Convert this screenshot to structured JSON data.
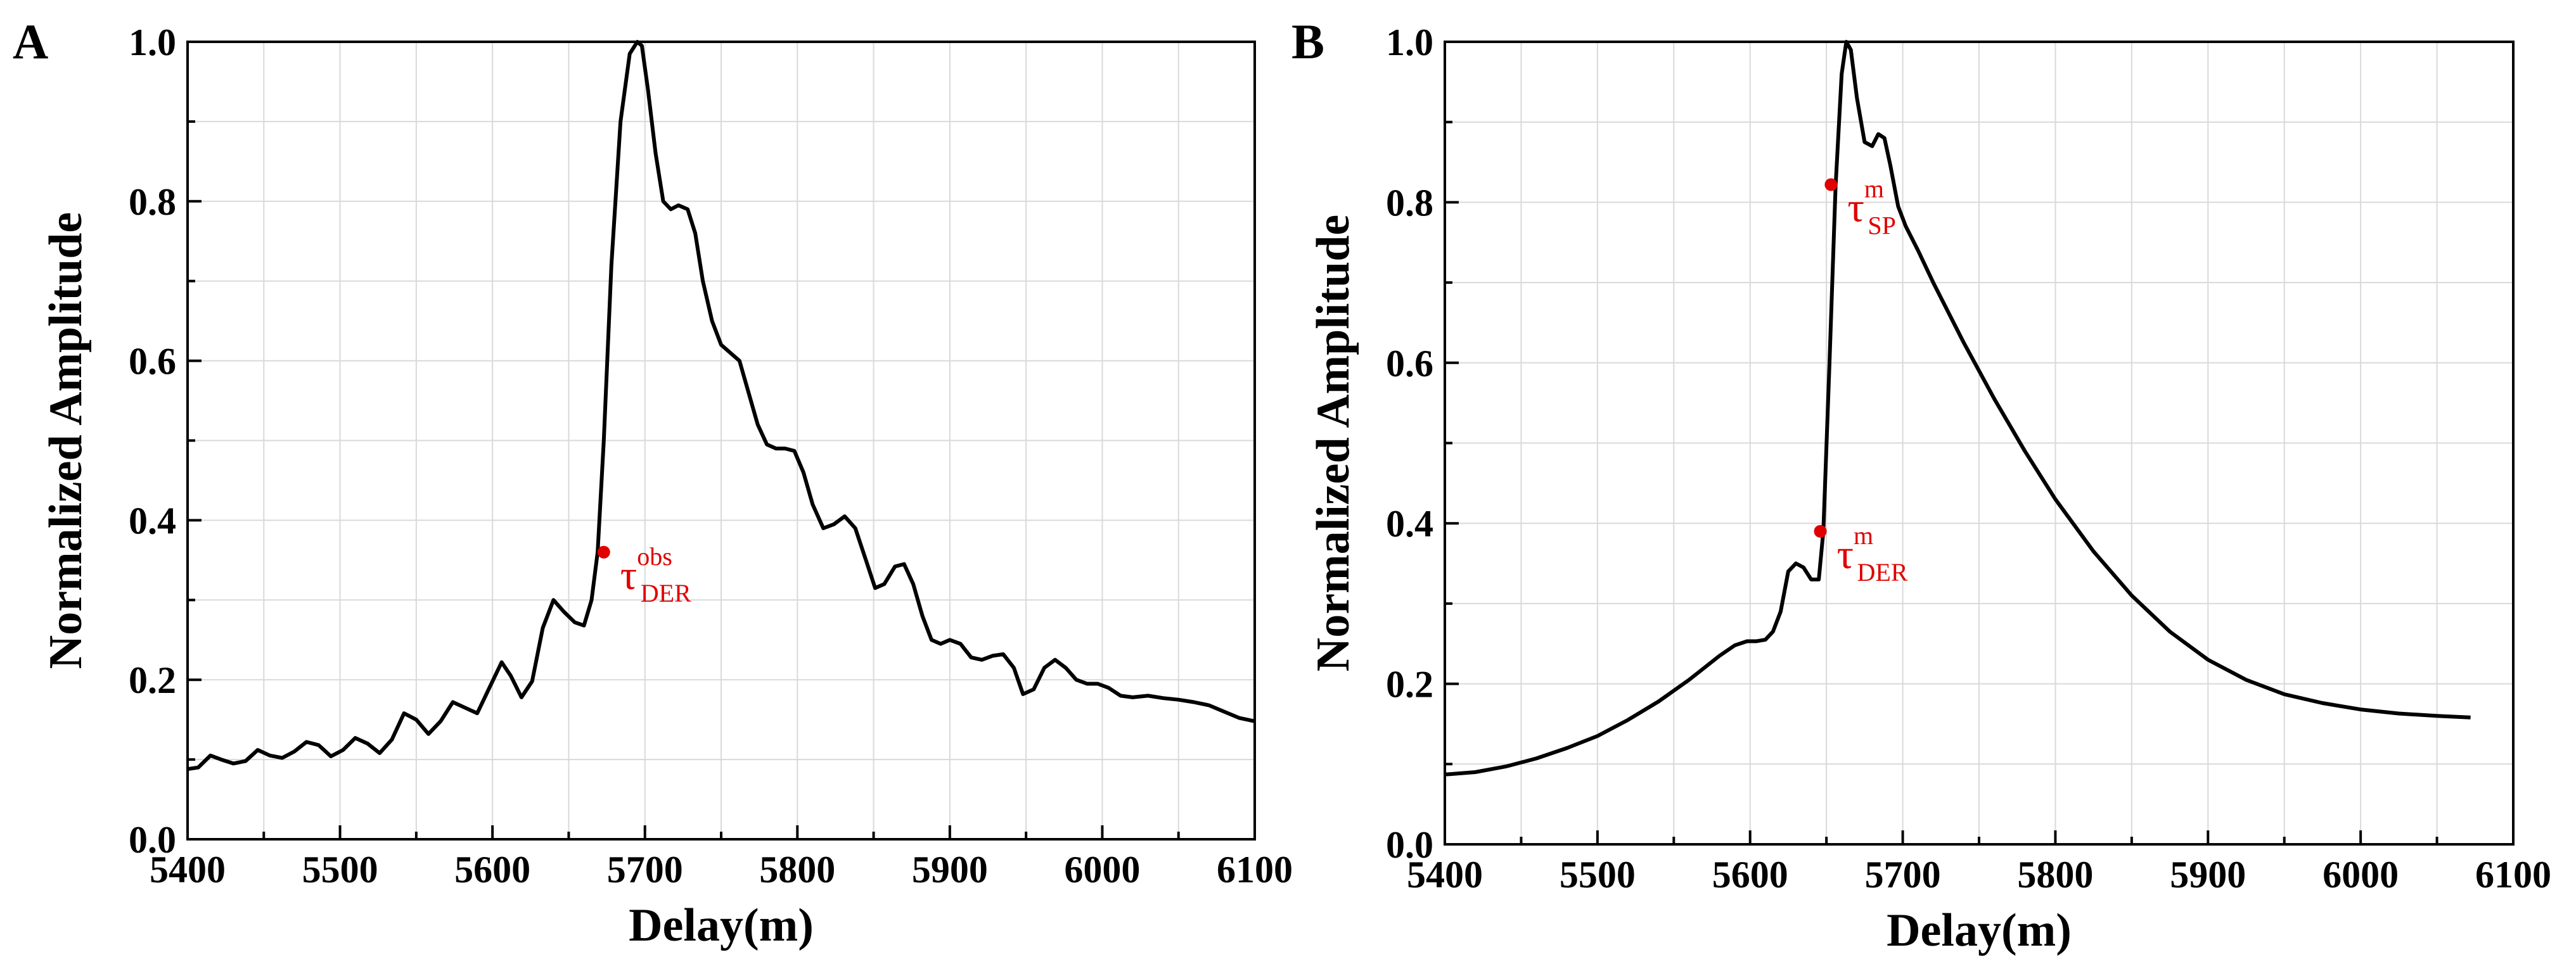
{
  "chart_data": [
    {
      "panel": "A",
      "type": "line",
      "xlabel": "Delay(m)",
      "ylabel": "Normalized Amplitude",
      "xlim": [
        5400,
        6100
      ],
      "ylim": [
        0.0,
        1.0
      ],
      "xticks": [
        "5400",
        "5500",
        "5600",
        "5700",
        "5800",
        "5900",
        "6000",
        "6100"
      ],
      "yticks": [
        "0.0",
        "0.2",
        "0.4",
        "0.6",
        "0.8",
        "1.0"
      ],
      "grid": true,
      "series": [
        {
          "name": "waveform",
          "x": [
            5400,
            5407,
            5415,
            5422,
            5430,
            5438,
            5446,
            5454,
            5462,
            5470,
            5478,
            5486,
            5494,
            5502,
            5510,
            5518,
            5526,
            5534,
            5542,
            5550,
            5558,
            5566,
            5574,
            5582,
            5590,
            5598,
            5606,
            5612,
            5619,
            5626,
            5633,
            5640,
            5647,
            5654,
            5660,
            5665,
            5669,
            5673,
            5678,
            5684,
            5690,
            5695,
            5698,
            5702,
            5707,
            5712,
            5717,
            5722,
            5728,
            5733,
            5738,
            5744,
            5750,
            5756,
            5762,
            5768,
            5774,
            5780,
            5786,
            5792,
            5798,
            5804,
            5810,
            5817,
            5824,
            5831,
            5838,
            5845,
            5851,
            5857,
            5864,
            5870,
            5876,
            5882,
            5888,
            5894,
            5900,
            5907,
            5914,
            5921,
            5928,
            5935,
            5942,
            5948,
            5955,
            5962,
            5969,
            5976,
            5983,
            5990,
            5997,
            6004,
            6012,
            6020,
            6030,
            6040,
            6050,
            6060,
            6070,
            6080,
            6090,
            6100
          ],
          "y": [
            0.088,
            0.09,
            0.105,
            0.1,
            0.095,
            0.098,
            0.112,
            0.105,
            0.102,
            0.11,
            0.122,
            0.118,
            0.104,
            0.112,
            0.127,
            0.12,
            0.108,
            0.125,
            0.158,
            0.15,
            0.132,
            0.148,
            0.172,
            0.165,
            0.158,
            0.19,
            0.222,
            0.205,
            0.178,
            0.198,
            0.265,
            0.3,
            0.285,
            0.272,
            0.268,
            0.3,
            0.36,
            0.5,
            0.72,
            0.9,
            0.985,
            1.0,
            0.995,
            0.94,
            0.86,
            0.8,
            0.79,
            0.795,
            0.79,
            0.76,
            0.7,
            0.65,
            0.62,
            0.61,
            0.6,
            0.56,
            0.52,
            0.495,
            0.49,
            0.49,
            0.487,
            0.46,
            0.42,
            0.39,
            0.395,
            0.405,
            0.39,
            0.35,
            0.315,
            0.32,
            0.342,
            0.345,
            0.32,
            0.28,
            0.25,
            0.245,
            0.25,
            0.245,
            0.228,
            0.225,
            0.23,
            0.232,
            0.215,
            0.182,
            0.188,
            0.215,
            0.225,
            0.215,
            0.2,
            0.195,
            0.195,
            0.19,
            0.18,
            0.178,
            0.18,
            0.177,
            0.175,
            0.172,
            0.168,
            0.16,
            0.152,
            0.148
          ]
        }
      ],
      "markers": [
        {
          "x": 5673,
          "y": 0.36,
          "label": "τ",
          "sup": "obs",
          "sub": "DER",
          "color": "#e00000"
        }
      ]
    },
    {
      "panel": "B",
      "type": "line",
      "xlabel": "Delay(m)",
      "ylabel": "Normalized Amplitude",
      "xlim": [
        5400,
        6100
      ],
      "ylim": [
        0.0,
        1.0
      ],
      "xticks": [
        "5400",
        "5500",
        "5600",
        "5700",
        "5800",
        "5900",
        "6000",
        "6100"
      ],
      "yticks": [
        "0.0",
        "0.2",
        "0.4",
        "0.6",
        "0.8",
        "1.0"
      ],
      "grid": true,
      "series": [
        {
          "name": "model",
          "x": [
            5400,
            5420,
            5440,
            5460,
            5480,
            5500,
            5520,
            5540,
            5560,
            5580,
            5590,
            5598,
            5604,
            5610,
            5615,
            5620,
            5625,
            5630,
            5635,
            5640,
            5645,
            5648,
            5652,
            5656,
            5660,
            5663,
            5666,
            5670,
            5675,
            5680,
            5684,
            5688,
            5692,
            5697,
            5702,
            5710,
            5720,
            5740,
            5760,
            5780,
            5800,
            5825,
            5850,
            5875,
            5900,
            5925,
            5950,
            5975,
            6000,
            6025,
            6050,
            6072
          ],
          "y": [
            0.087,
            0.09,
            0.097,
            0.107,
            0.12,
            0.135,
            0.155,
            0.178,
            0.205,
            0.235,
            0.248,
            0.253,
            0.253,
            0.255,
            0.265,
            0.29,
            0.34,
            0.35,
            0.345,
            0.33,
            0.33,
            0.39,
            0.6,
            0.82,
            0.96,
            1.0,
            0.99,
            0.93,
            0.875,
            0.87,
            0.885,
            0.88,
            0.845,
            0.795,
            0.77,
            0.74,
            0.7,
            0.625,
            0.555,
            0.49,
            0.43,
            0.365,
            0.31,
            0.265,
            0.23,
            0.205,
            0.187,
            0.176,
            0.168,
            0.163,
            0.16,
            0.158
          ]
        }
      ],
      "markers": [
        {
          "x": 5653,
          "y": 0.822,
          "label": "τ",
          "sup": "m",
          "sub": "SP",
          "color": "#e00000"
        },
        {
          "x": 5646,
          "y": 0.39,
          "label": "τ",
          "sup": "m",
          "sub": "DER",
          "color": "#e00000"
        }
      ]
    }
  ]
}
